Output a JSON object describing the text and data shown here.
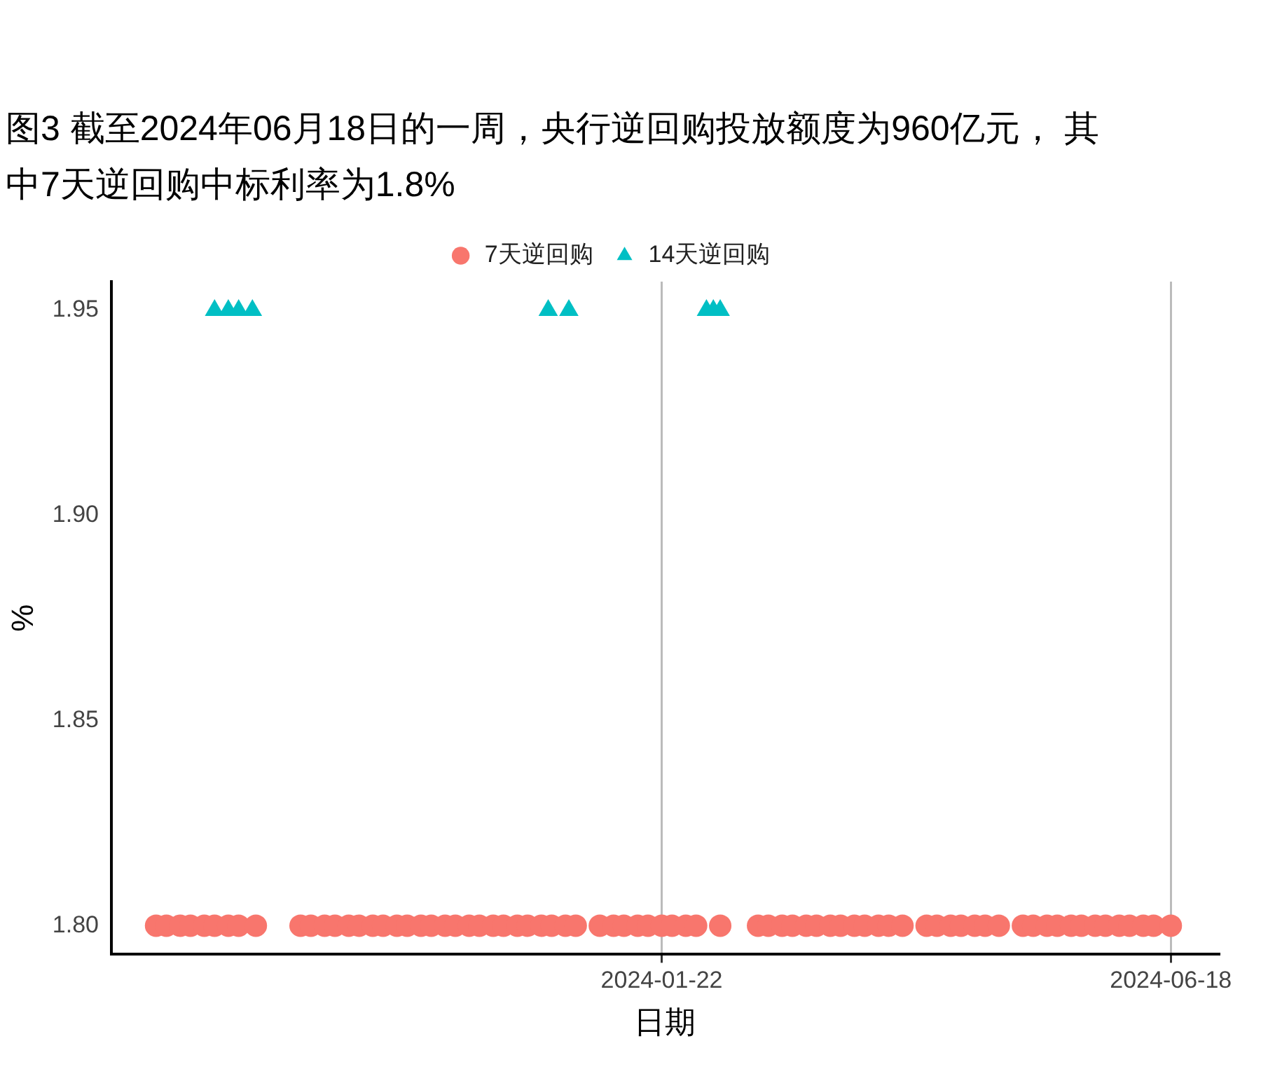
{
  "chart_data": {
    "type": "scatter",
    "title": "图3  截至2024年06月18日的一周，央行逆回购投放额度为960亿元， 其中7天逆回购中标利率为1.8%",
    "xlabel": "日期",
    "ylabel": "%",
    "xlim": [
      "2023-08-15",
      "2024-07-02"
    ],
    "xticks": [
      "2024-01-22",
      "2024-06-18"
    ],
    "ylim": [
      1.793,
      1.957
    ],
    "yticks": [
      {
        "value": 1.8,
        "label": "1.80"
      },
      {
        "value": 1.85,
        "label": "1.85"
      },
      {
        "value": 1.9,
        "label": "1.90"
      },
      {
        "value": 1.95,
        "label": "1.95"
      }
    ],
    "grid": "x",
    "legend": "top",
    "series": [
      {
        "name": "7天逆回购",
        "color": "#f8766d",
        "marker": "circle",
        "x": [
          "2023-08-28",
          "2023-08-31",
          "2023-09-04",
          "2023-09-07",
          "2023-09-11",
          "2023-09-14",
          "2023-09-18",
          "2023-09-21",
          "2023-09-26",
          "2023-10-09",
          "2023-10-12",
          "2023-10-16",
          "2023-10-19",
          "2023-10-23",
          "2023-10-26",
          "2023-10-30",
          "2023-11-02",
          "2023-11-06",
          "2023-11-09",
          "2023-11-13",
          "2023-11-16",
          "2023-11-20",
          "2023-11-23",
          "2023-11-27",
          "2023-11-30",
          "2023-12-04",
          "2023-12-07",
          "2023-12-11",
          "2023-12-14",
          "2023-12-18",
          "2023-12-21",
          "2023-12-25",
          "2023-12-28",
          "2024-01-04",
          "2024-01-08",
          "2024-01-11",
          "2024-01-15",
          "2024-01-18",
          "2024-01-22",
          "2024-01-25",
          "2024-01-29",
          "2024-02-01",
          "2024-02-08",
          "2024-02-19",
          "2024-02-22",
          "2024-02-26",
          "2024-02-29",
          "2024-03-04",
          "2024-03-07",
          "2024-03-11",
          "2024-03-14",
          "2024-03-18",
          "2024-03-21",
          "2024-03-25",
          "2024-03-28",
          "2024-04-01",
          "2024-04-08",
          "2024-04-11",
          "2024-04-15",
          "2024-04-18",
          "2024-04-22",
          "2024-04-25",
          "2024-04-29",
          "2024-05-06",
          "2024-05-09",
          "2024-05-13",
          "2024-05-16",
          "2024-05-20",
          "2024-05-23",
          "2024-05-27",
          "2024-05-30",
          "2024-06-03",
          "2024-06-06",
          "2024-06-10",
          "2024-06-13",
          "2024-06-18"
        ],
        "values": [
          1.8,
          1.8,
          1.8,
          1.8,
          1.8,
          1.8,
          1.8,
          1.8,
          1.8,
          1.8,
          1.8,
          1.8,
          1.8,
          1.8,
          1.8,
          1.8,
          1.8,
          1.8,
          1.8,
          1.8,
          1.8,
          1.8,
          1.8,
          1.8,
          1.8,
          1.8,
          1.8,
          1.8,
          1.8,
          1.8,
          1.8,
          1.8,
          1.8,
          1.8,
          1.8,
          1.8,
          1.8,
          1.8,
          1.8,
          1.8,
          1.8,
          1.8,
          1.8,
          1.8,
          1.8,
          1.8,
          1.8,
          1.8,
          1.8,
          1.8,
          1.8,
          1.8,
          1.8,
          1.8,
          1.8,
          1.8,
          1.8,
          1.8,
          1.8,
          1.8,
          1.8,
          1.8,
          1.8,
          1.8,
          1.8,
          1.8,
          1.8,
          1.8,
          1.8,
          1.8,
          1.8,
          1.8,
          1.8,
          1.8,
          1.8,
          1.8
        ]
      },
      {
        "name": "14天逆回购",
        "color": "#00bfc4",
        "marker": "triangle",
        "x": [
          "2023-09-14",
          "2023-09-18",
          "2023-09-21",
          "2023-09-25",
          "2023-12-20",
          "2023-12-26",
          "2024-02-04",
          "2024-02-06",
          "2024-02-08"
        ],
        "values": [
          1.95,
          1.95,
          1.95,
          1.95,
          1.95,
          1.95,
          1.95,
          1.95,
          1.95
        ]
      }
    ]
  }
}
